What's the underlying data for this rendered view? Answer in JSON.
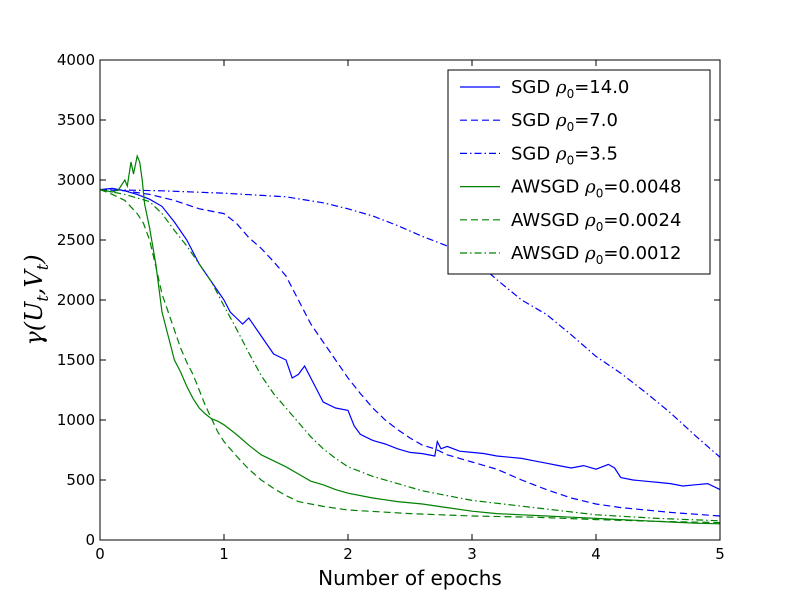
{
  "chart_data": {
    "type": "line",
    "title": "",
    "xlabel": "Number of epochs",
    "ylabel": "γ(U_t, V_t)",
    "ylabel_parts": {
      "main": "γ(U",
      "sub1": "t",
      "mid": ",V",
      "sub2": "t",
      "end": ")"
    },
    "xlim": [
      0,
      5
    ],
    "ylim": [
      0,
      4000
    ],
    "xticks": [
      0,
      1,
      2,
      3,
      4,
      5
    ],
    "xtick_labels": [
      "0",
      "1",
      "2",
      "3",
      "4",
      "5"
    ],
    "yticks": [
      0,
      500,
      1000,
      1500,
      2000,
      2500,
      3000,
      3500,
      4000
    ],
    "ytick_labels": [
      "0",
      "500",
      "1000",
      "1500",
      "2000",
      "2500",
      "3000",
      "3500",
      "4000"
    ],
    "grid": false,
    "legend_position": "top-right",
    "series": [
      {
        "name": "SGD ρ0=14.0",
        "prefix": "SGD ",
        "rho": "ρ",
        "sub": "0",
        "value": "=14.0",
        "color": "#0000ff",
        "style": "solid",
        "x": [
          0,
          0.1,
          0.2,
          0.3,
          0.4,
          0.5,
          0.6,
          0.7,
          0.8,
          0.9,
          1.0,
          1.05,
          1.1,
          1.15,
          1.2,
          1.3,
          1.4,
          1.5,
          1.55,
          1.6,
          1.65,
          1.7,
          1.75,
          1.8,
          1.9,
          2.0,
          2.05,
          2.1,
          2.2,
          2.3,
          2.4,
          2.5,
          2.6,
          2.7,
          2.72,
          2.75,
          2.8,
          2.9,
          3.0,
          3.1,
          3.2,
          3.3,
          3.4,
          3.5,
          3.6,
          3.7,
          3.8,
          3.9,
          4.0,
          4.1,
          4.15,
          4.2,
          4.3,
          4.4,
          4.5,
          4.6,
          4.7,
          4.8,
          4.9,
          5.0
        ],
        "y": [
          2920,
          2930,
          2910,
          2880,
          2840,
          2780,
          2650,
          2500,
          2300,
          2150,
          2000,
          1900,
          1850,
          1800,
          1850,
          1700,
          1550,
          1500,
          1350,
          1380,
          1450,
          1350,
          1250,
          1150,
          1100,
          1080,
          950,
          880,
          830,
          800,
          760,
          730,
          720,
          700,
          820,
          760,
          780,
          740,
          730,
          720,
          700,
          690,
          680,
          660,
          640,
          620,
          600,
          620,
          590,
          630,
          600,
          520,
          500,
          490,
          480,
          470,
          450,
          460,
          470,
          420
        ]
      },
      {
        "name": "SGD ρ0=7.0",
        "prefix": "SGD ",
        "rho": "ρ",
        "sub": "0",
        "value": "=7.0",
        "color": "#0000ff",
        "style": "dashed",
        "x": [
          0,
          0.2,
          0.4,
          0.6,
          0.8,
          1.0,
          1.1,
          1.2,
          1.3,
          1.4,
          1.5,
          1.6,
          1.7,
          1.8,
          1.9,
          2.0,
          2.1,
          2.2,
          2.3,
          2.4,
          2.5,
          2.6,
          2.7,
          2.8,
          2.9,
          3.0,
          3.2,
          3.4,
          3.6,
          3.8,
          4.0,
          4.2,
          4.4,
          4.6,
          4.8,
          5.0
        ],
        "y": [
          2920,
          2910,
          2880,
          2830,
          2760,
          2720,
          2640,
          2520,
          2430,
          2320,
          2200,
          2000,
          1800,
          1650,
          1500,
          1350,
          1220,
          1100,
          1000,
          920,
          850,
          790,
          760,
          710,
          680,
          650,
          590,
          500,
          420,
          350,
          300,
          270,
          250,
          230,
          215,
          200
        ]
      },
      {
        "name": "SGD ρ0=3.5",
        "prefix": "SGD ",
        "rho": "ρ",
        "sub": "0",
        "value": "=3.5",
        "color": "#0000ff",
        "style": "dashdot",
        "x": [
          0,
          0.5,
          1.0,
          1.5,
          1.8,
          2.0,
          2.2,
          2.4,
          2.6,
          2.8,
          3.0,
          3.2,
          3.4,
          3.6,
          3.8,
          4.0,
          4.2,
          4.4,
          4.6,
          4.8,
          5.0
        ],
        "y": [
          2920,
          2910,
          2890,
          2860,
          2810,
          2760,
          2700,
          2620,
          2530,
          2450,
          2350,
          2170,
          2000,
          1880,
          1710,
          1530,
          1390,
          1230,
          1060,
          870,
          690
        ]
      },
      {
        "name": "AWSGD ρ0=0.0048",
        "prefix": "AWSGD ",
        "rho": "ρ",
        "sub": "0",
        "value": "=0.0048",
        "color": "#008000",
        "style": "solid",
        "x": [
          0,
          0.1,
          0.15,
          0.2,
          0.22,
          0.25,
          0.27,
          0.3,
          0.32,
          0.34,
          0.36,
          0.38,
          0.4,
          0.45,
          0.5,
          0.55,
          0.6,
          0.65,
          0.7,
          0.75,
          0.8,
          0.85,
          0.9,
          0.95,
          1.0,
          1.1,
          1.2,
          1.3,
          1.4,
          1.5,
          1.6,
          1.7,
          1.8,
          1.9,
          2.0,
          2.2,
          2.4,
          2.6,
          2.8,
          3.0,
          3.2,
          3.4,
          3.6,
          3.8,
          4.0,
          4.2,
          4.4,
          4.6,
          4.8,
          5.0
        ],
        "y": [
          2920,
          2900,
          2920,
          3000,
          2950,
          3150,
          3050,
          3200,
          3150,
          3000,
          2800,
          2700,
          2600,
          2300,
          1900,
          1700,
          1500,
          1400,
          1280,
          1180,
          1100,
          1050,
          1010,
          990,
          960,
          880,
          790,
          710,
          660,
          610,
          550,
          490,
          460,
          420,
          390,
          350,
          320,
          300,
          270,
          240,
          220,
          210,
          200,
          190,
          180,
          170,
          160,
          150,
          140,
          135
        ]
      },
      {
        "name": "AWSGD ρ0=0.0024",
        "prefix": "AWSGD ",
        "rho": "ρ",
        "sub": "0",
        "value": "=0.0024",
        "color": "#008000",
        "style": "dashed",
        "x": [
          0,
          0.1,
          0.2,
          0.3,
          0.35,
          0.4,
          0.45,
          0.5,
          0.55,
          0.6,
          0.65,
          0.7,
          0.75,
          0.8,
          0.85,
          0.9,
          0.95,
          1.0,
          1.1,
          1.2,
          1.3,
          1.4,
          1.5,
          1.6,
          1.8,
          2.0,
          2.5,
          3.0,
          3.5,
          4.0,
          4.5,
          5.0
        ],
        "y": [
          2920,
          2880,
          2830,
          2720,
          2640,
          2500,
          2280,
          2050,
          1900,
          1750,
          1600,
          1480,
          1380,
          1250,
          1120,
          1010,
          900,
          820,
          700,
          590,
          500,
          430,
          370,
          320,
          280,
          250,
          220,
          200,
          190,
          170,
          155,
          145
        ]
      },
      {
        "name": "AWSGD ρ0=0.0012",
        "prefix": "AWSGD ",
        "rho": "ρ",
        "sub": "0",
        "value": "=0.0012",
        "color": "#008000",
        "style": "dashdot",
        "x": [
          0,
          0.2,
          0.4,
          0.5,
          0.6,
          0.7,
          0.8,
          0.9,
          1.0,
          1.1,
          1.2,
          1.3,
          1.4,
          1.5,
          1.6,
          1.7,
          1.8,
          1.9,
          2.0,
          2.2,
          2.4,
          2.6,
          2.8,
          3.0,
          3.5,
          4.0,
          4.5,
          5.0
        ],
        "y": [
          2920,
          2880,
          2820,
          2720,
          2580,
          2450,
          2300,
          2150,
          1950,
          1760,
          1560,
          1370,
          1220,
          1100,
          980,
          860,
          760,
          680,
          610,
          530,
          470,
          410,
          370,
          330,
          270,
          210,
          180,
          160
        ]
      }
    ]
  }
}
